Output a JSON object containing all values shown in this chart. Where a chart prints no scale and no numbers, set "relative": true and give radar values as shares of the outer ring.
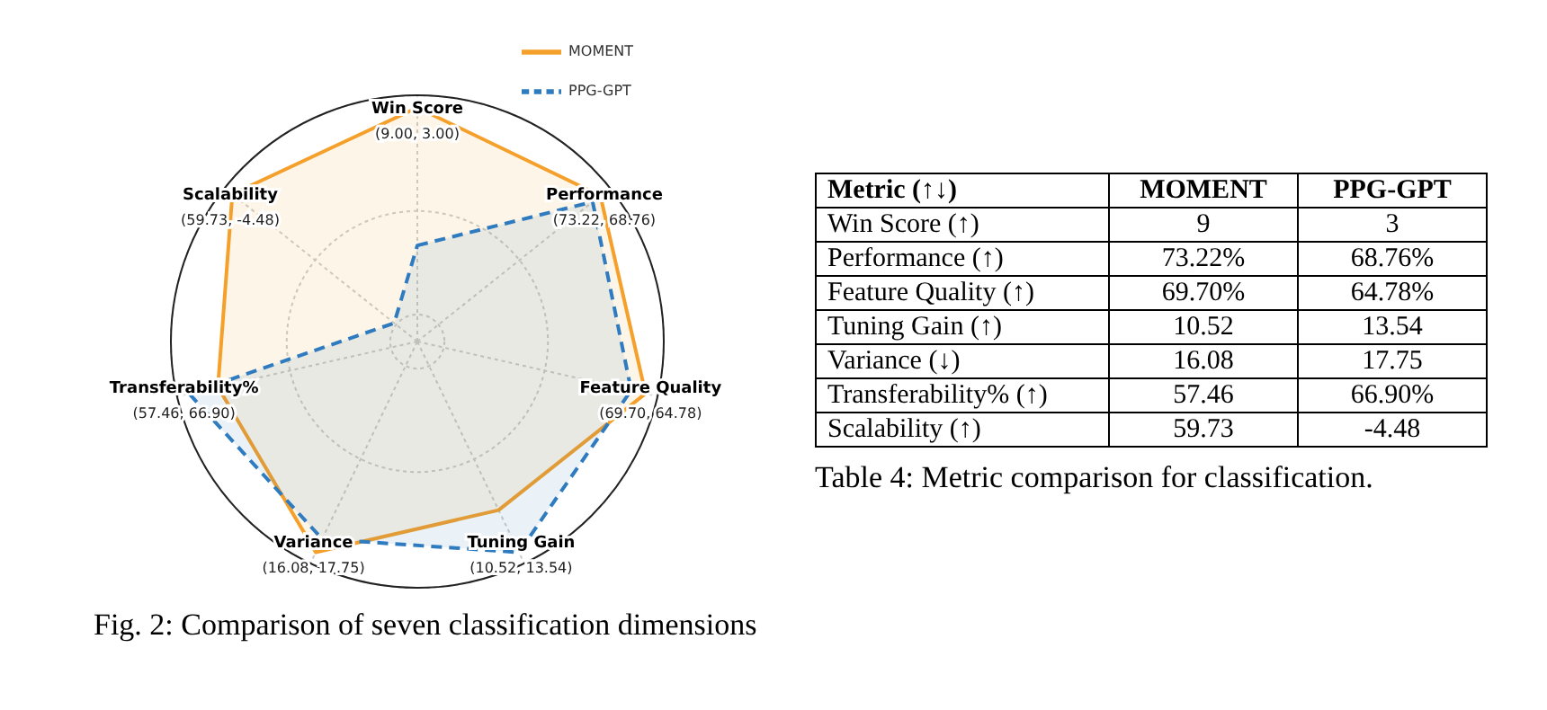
{
  "chart_data": [
    {
      "type": "radar",
      "title": "Fig. 2: Comparison of seven classification dimensions",
      "categories": [
        "Win Score",
        "Performance",
        "Feature Quality",
        "Tuning Gain",
        "Variance",
        "Transferability%",
        "Scalability"
      ],
      "relative": true,
      "grid": true,
      "legend": "top right",
      "series": [
        {
          "name": "MOMENT",
          "color": "#f5a02a",
          "line_style": "solid",
          "values": [
            0.95,
            0.95,
            0.95,
            0.76,
            0.95,
            0.83,
            0.96
          ]
        },
        {
          "name": "PPG-GPT",
          "color": "#2f7bbf",
          "line_style": "dashed",
          "values": [
            0.39,
            0.91,
            0.89,
            0.95,
            0.89,
            0.95,
            0.12
          ]
        }
      ],
      "annotations": [
        "(9.00, 3.00)",
        "(73.22, 68.76)",
        "(69.70, 64.78)",
        "(10.52, 13.54)",
        "(16.08, 17.75)",
        "(57.46, 66.90)",
        "(59.73, -4.48)"
      ]
    },
    {
      "type": "other",
      "title": "Table 4: Metric comparison for classification.",
      "categories": [
        "Metric (↑↓)",
        "MOMENT",
        "PPG-GPT"
      ],
      "cell_labels": [
        [
          "Win Score (↑)",
          "9",
          "3"
        ],
        [
          "Performance (↑)",
          "73.22%",
          "68.76%"
        ],
        [
          "Feature Quality (↑)",
          "69.70%",
          "64.78%"
        ],
        [
          "Tuning Gain (↑)",
          "10.52",
          "13.54"
        ],
        [
          "Variance (↓)",
          "16.08",
          "17.75"
        ],
        [
          "Transferability% (↑)",
          "57.46",
          "66.90%"
        ],
        [
          "Scalability (↑)",
          "59.73",
          "-4.48"
        ]
      ]
    }
  ]
}
